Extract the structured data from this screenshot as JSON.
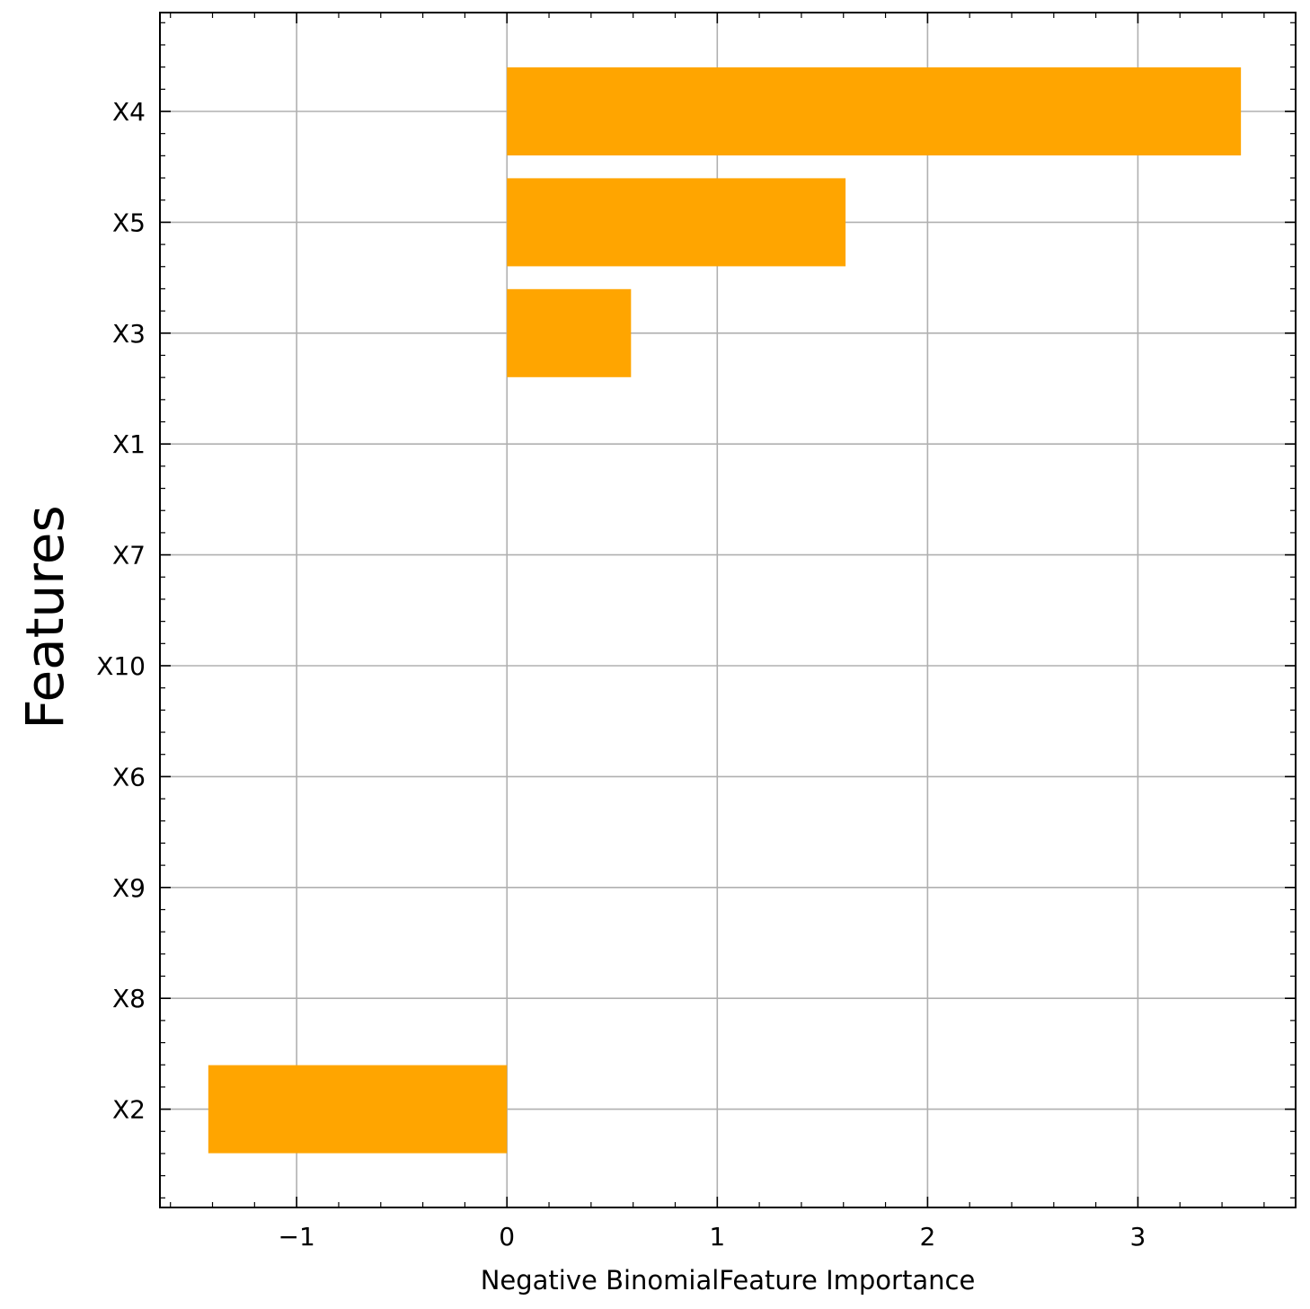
{
  "chart_data": {
    "type": "bar",
    "orientation": "horizontal",
    "categories": [
      "X4",
      "X5",
      "X3",
      "X1",
      "X7",
      "X10",
      "X6",
      "X9",
      "X8",
      "X2"
    ],
    "values": [
      3.49,
      1.61,
      0.59,
      0.0,
      0.0,
      0.0,
      0.0,
      0.0,
      0.0,
      -1.42
    ],
    "bar_color": "#ffa500",
    "title": "",
    "xlabel": "Negative BinomialFeature Importance",
    "ylabel": "Features",
    "xlim": [
      -1.65,
      3.75
    ],
    "xticks": [
      -1,
      0,
      1,
      2,
      3
    ],
    "xtick_labels": [
      "−1",
      "0",
      "1",
      "2",
      "3"
    ],
    "grid": true
  }
}
